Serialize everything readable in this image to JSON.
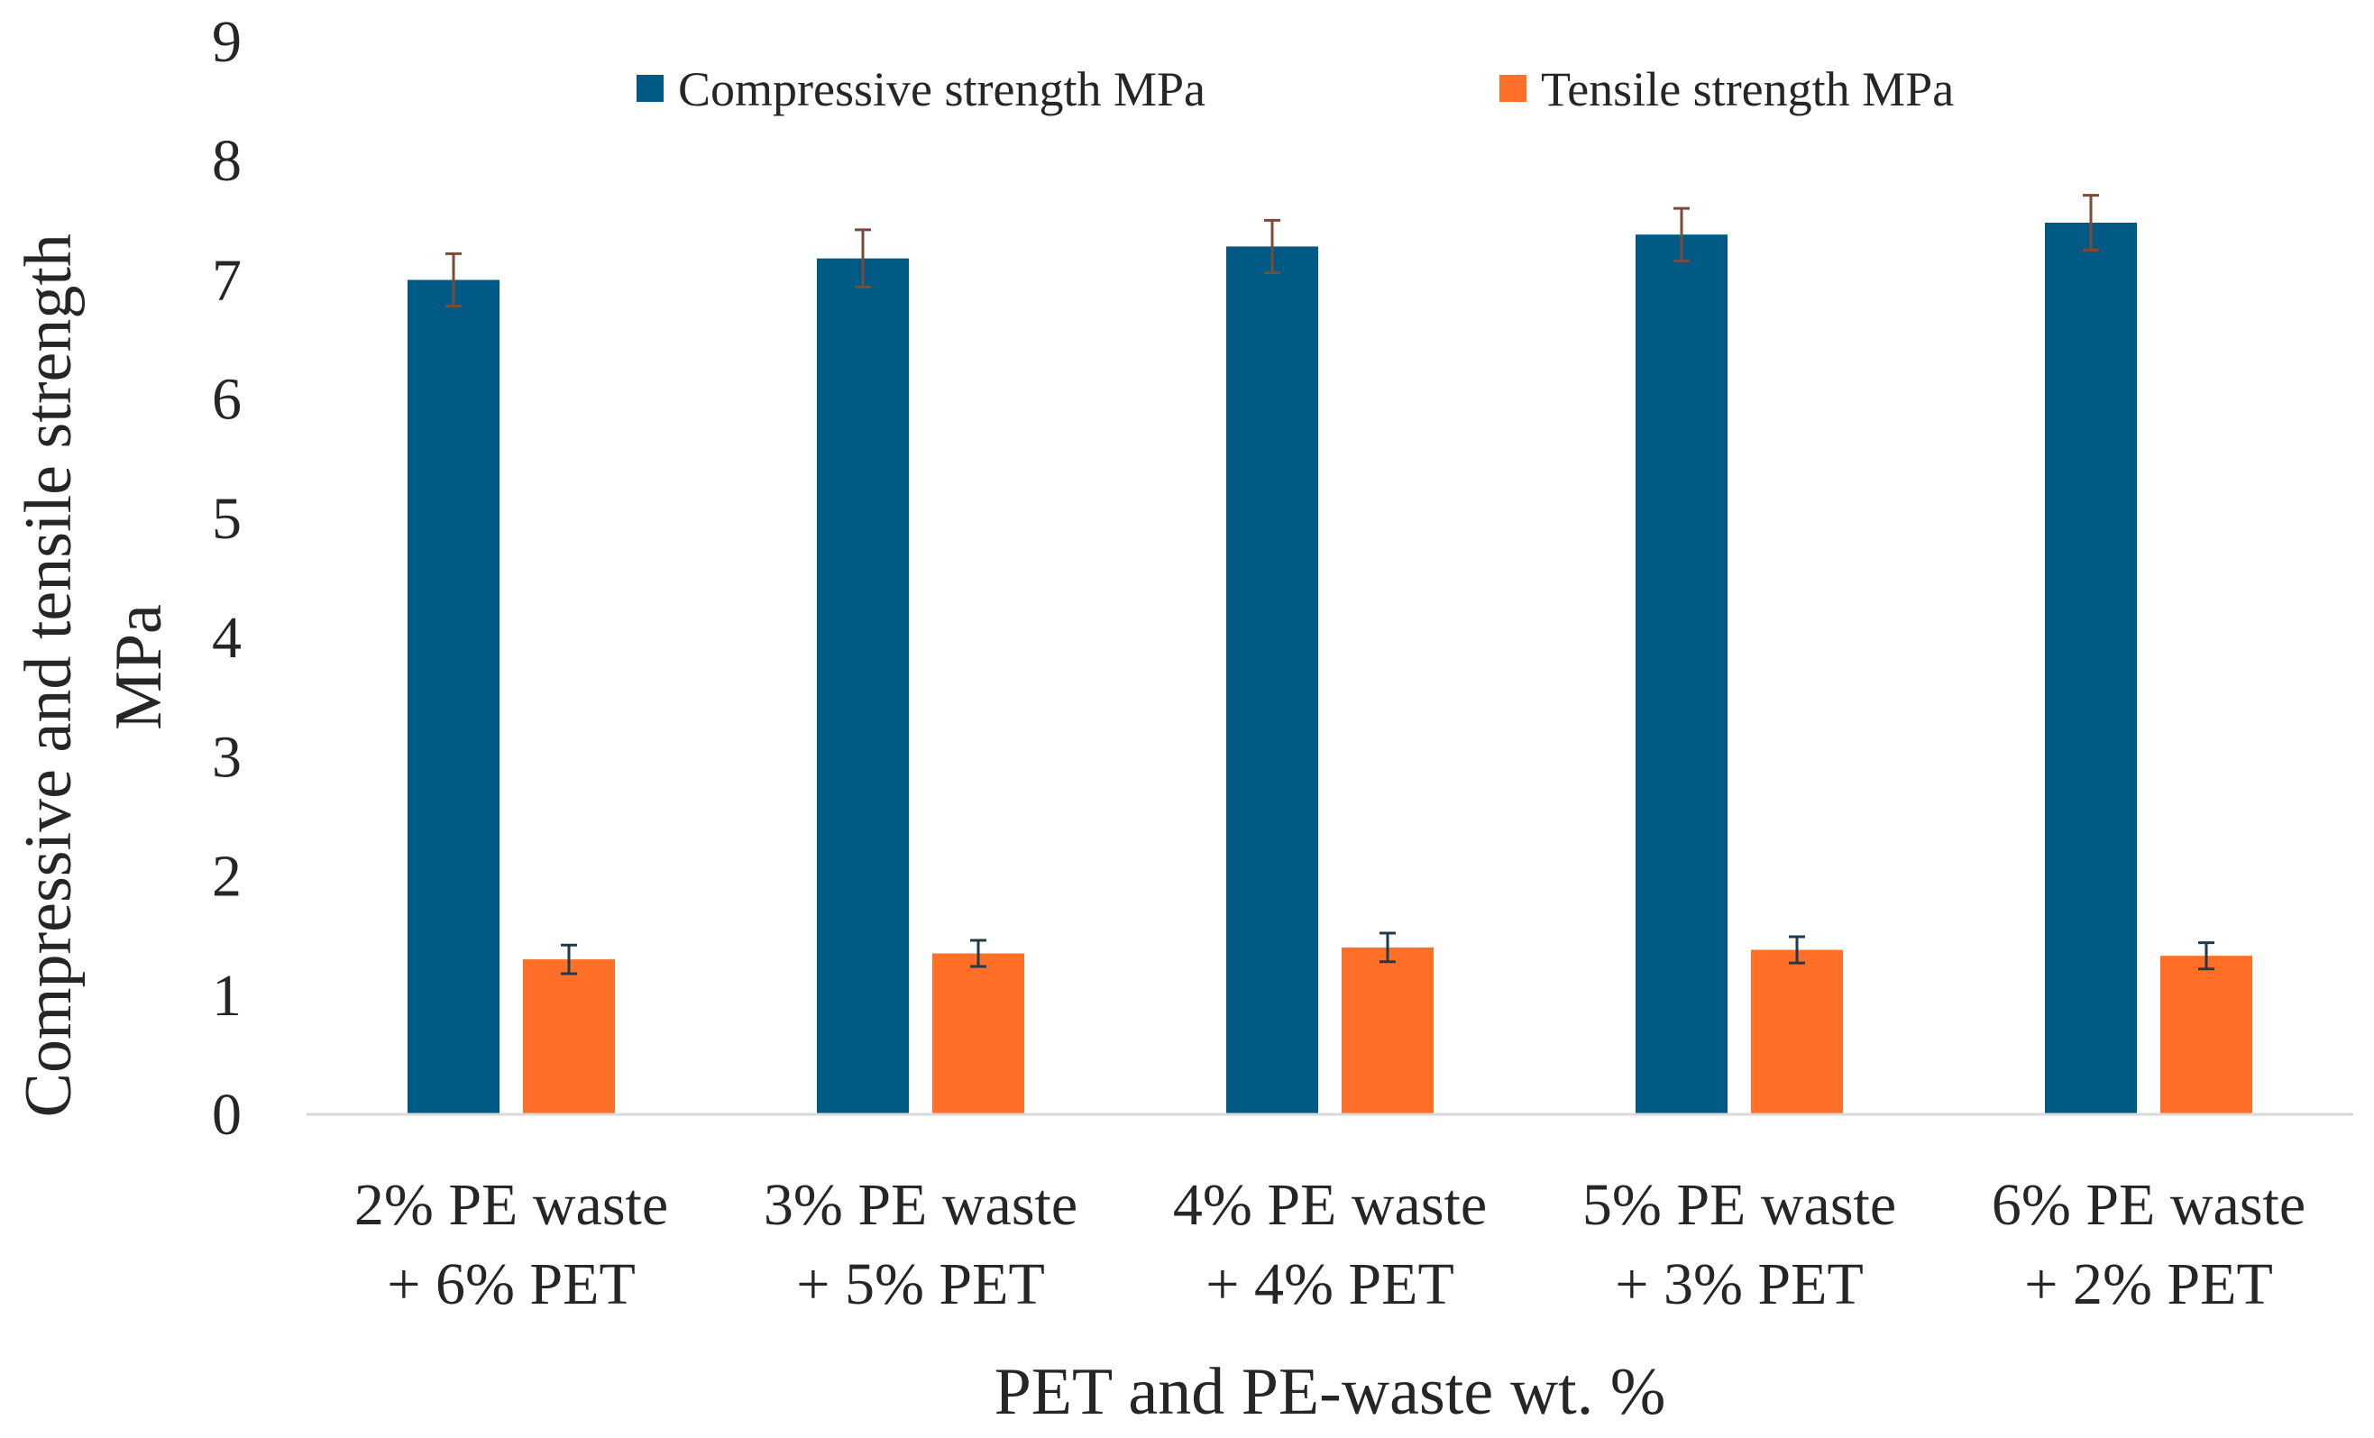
{
  "chart_data": {
    "type": "bar",
    "title": "",
    "xlabel": "PET and PE-waste wt. %",
    "ylabel_lines": [
      "Compressive and tensile strength",
      "MPa"
    ],
    "ylim": [
      0,
      9
    ],
    "yticks": [
      "0",
      "1",
      "2",
      "3",
      "4",
      "5",
      "6",
      "7",
      "8",
      "9"
    ],
    "grid": false,
    "legend_position": "top-center",
    "categories": [
      {
        "line1": "2% PE waste",
        "line2": "+ 6% PET"
      },
      {
        "line1": "3% PE waste",
        "line2": "+ 5% PET"
      },
      {
        "line1": "4% PE waste",
        "line2": "+ 4% PET"
      },
      {
        "line1": "5% PE waste",
        "line2": "+ 3% PET"
      },
      {
        "line1": "6% PE waste",
        "line2": "+ 2% PET"
      }
    ],
    "series": [
      {
        "name": "Compressive strength MPa",
        "color": "#005a85",
        "errorbar_color": "#7a4a3a",
        "values": [
          7.0,
          7.18,
          7.28,
          7.38,
          7.48
        ],
        "errors": [
          0.22,
          0.24,
          0.22,
          0.22,
          0.23
        ]
      },
      {
        "name": "Tensile strength MPa",
        "color": "#ff6f28",
        "errorbar_color": "#1f3b4d",
        "values": [
          1.3,
          1.35,
          1.4,
          1.38,
          1.33
        ],
        "errors": [
          0.12,
          0.11,
          0.12,
          0.11,
          0.11
        ]
      }
    ]
  }
}
